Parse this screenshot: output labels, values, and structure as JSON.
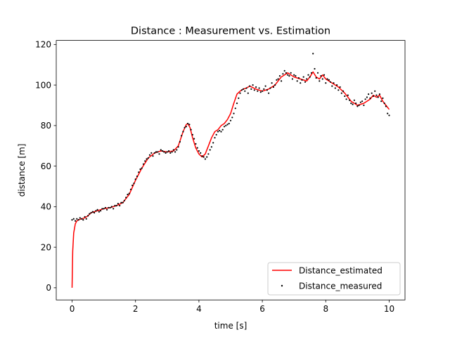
{
  "chart_data": {
    "type": "line",
    "title": "Distance : Measurement vs. Estimation",
    "xlabel": "time [s]",
    "ylabel": "distance [m]",
    "xlim": [
      -0.5,
      10.5
    ],
    "ylim": [
      -6,
      122
    ],
    "xticks": [
      0,
      2,
      4,
      6,
      8,
      10
    ],
    "yticks": [
      0,
      20,
      40,
      60,
      80,
      100,
      120
    ],
    "grid": false,
    "legend_position": "lower-right",
    "series": [
      {
        "name": "Distance_estimated",
        "style": "line",
        "color": "#ff0000",
        "x": [
          0,
          0.02,
          0.05,
          0.1,
          0.15,
          0.2,
          0.3,
          0.4,
          0.5,
          0.6,
          0.8,
          1.0,
          1.2,
          1.4,
          1.6,
          1.8,
          2.0,
          2.2,
          2.4,
          2.6,
          2.8,
          3.0,
          3.2,
          3.35,
          3.5,
          3.6,
          3.65,
          3.72,
          3.8,
          3.9,
          4.0,
          4.1,
          4.2,
          4.3,
          4.4,
          4.5,
          4.6,
          4.7,
          4.8,
          4.9,
          5.0,
          5.1,
          5.2,
          5.3,
          5.4,
          5.5,
          5.6,
          5.8,
          6.0,
          6.2,
          6.4,
          6.6,
          6.8,
          7.0,
          7.2,
          7.4,
          7.5,
          7.6,
          7.7,
          7.8,
          7.9,
          8.0,
          8.2,
          8.4,
          8.6,
          8.8,
          9.0,
          9.2,
          9.4,
          9.5,
          9.6,
          9.7,
          9.8,
          9.9,
          10.0
        ],
        "y": [
          0,
          18,
          27,
          31.5,
          33,
          33.5,
          34,
          34.5,
          35.5,
          37,
          38,
          39,
          39.5,
          40.5,
          42,
          46,
          53,
          59,
          64,
          66.5,
          67.5,
          67,
          67.5,
          70,
          77,
          80.5,
          81,
          79,
          74,
          69,
          66,
          64.5,
          66,
          70,
          74,
          77,
          78,
          80,
          81,
          83,
          86,
          91,
          95.5,
          97,
          98,
          98.5,
          99.5,
          98,
          97,
          98,
          100,
          104,
          106,
          104,
          103,
          102,
          104,
          106.5,
          104,
          103,
          105,
          103,
          101,
          99,
          96,
          92,
          90,
          91,
          93,
          95,
          94,
          95,
          92,
          90,
          88
        ]
      },
      {
        "name": "Distance_measured",
        "style": "scatter",
        "color": "#000000",
        "x": [
          0,
          0.05,
          0.1,
          0.15,
          0.2,
          0.25,
          0.3,
          0.35,
          0.4,
          0.45,
          0.5,
          0.55,
          0.6,
          0.65,
          0.7,
          0.75,
          0.8,
          0.85,
          0.9,
          0.95,
          1.0,
          1.05,
          1.1,
          1.15,
          1.2,
          1.25,
          1.3,
          1.35,
          1.4,
          1.45,
          1.5,
          1.55,
          1.6,
          1.65,
          1.7,
          1.75,
          1.8,
          1.85,
          1.9,
          1.95,
          2.0,
          2.05,
          2.1,
          2.15,
          2.2,
          2.25,
          2.3,
          2.35,
          2.4,
          2.45,
          2.5,
          2.55,
          2.6,
          2.65,
          2.7,
          2.75,
          2.8,
          2.85,
          2.9,
          2.95,
          3.0,
          3.05,
          3.1,
          3.15,
          3.2,
          3.25,
          3.3,
          3.35,
          3.4,
          3.45,
          3.5,
          3.55,
          3.6,
          3.65,
          3.7,
          3.75,
          3.8,
          3.85,
          3.9,
          3.95,
          4.0,
          4.05,
          4.1,
          4.15,
          4.2,
          4.25,
          4.3,
          4.35,
          4.4,
          4.45,
          4.5,
          4.55,
          4.6,
          4.65,
          4.7,
          4.75,
          4.8,
          4.85,
          4.9,
          4.95,
          5.0,
          5.05,
          5.1,
          5.15,
          5.2,
          5.25,
          5.3,
          5.35,
          5.4,
          5.45,
          5.5,
          5.55,
          5.6,
          5.65,
          5.7,
          5.75,
          5.8,
          5.85,
          5.9,
          5.95,
          6.0,
          6.05,
          6.1,
          6.15,
          6.2,
          6.25,
          6.3,
          6.35,
          6.4,
          6.45,
          6.5,
          6.55,
          6.6,
          6.65,
          6.7,
          6.75,
          6.8,
          6.85,
          6.9,
          6.95,
          7.0,
          7.05,
          7.1,
          7.15,
          7.2,
          7.25,
          7.3,
          7.35,
          7.4,
          7.45,
          7.5,
          7.55,
          7.6,
          7.65,
          7.7,
          7.75,
          7.8,
          7.85,
          7.9,
          7.95,
          8.0,
          8.05,
          8.1,
          8.15,
          8.2,
          8.25,
          8.3,
          8.35,
          8.4,
          8.45,
          8.5,
          8.55,
          8.6,
          8.65,
          8.7,
          8.75,
          8.8,
          8.85,
          8.9,
          8.95,
          9.0,
          9.05,
          9.1,
          9.15,
          9.2,
          9.25,
          9.3,
          9.35,
          9.4,
          9.45,
          9.5,
          9.55,
          9.6,
          9.65,
          9.7,
          9.75,
          9.8,
          9.85,
          9.9,
          9.95,
          10.0
        ],
        "y": [
          33.5,
          34,
          33,
          34,
          33.5,
          34.5,
          34,
          33.5,
          35,
          34,
          35.5,
          36.5,
          37,
          37.5,
          37,
          38,
          38.5,
          37.5,
          38,
          39,
          39,
          39.5,
          38.5,
          39.5,
          39.5,
          40,
          39,
          40.5,
          40.5,
          41.5,
          40.5,
          42,
          42,
          43,
          44.5,
          46,
          46.5,
          48.5,
          50.5,
          51.5,
          53.5,
          55,
          57,
          58.5,
          59,
          61,
          62.5,
          63.5,
          64,
          65.5,
          66.5,
          65,
          66.5,
          67,
          67,
          66,
          68,
          67.5,
          67,
          66.5,
          67,
          67.5,
          66.5,
          67,
          68,
          67,
          68,
          69.5,
          72,
          75,
          77,
          79,
          79.5,
          81,
          80.5,
          78,
          75.5,
          73.5,
          71,
          69,
          67.5,
          66.5,
          65,
          64.5,
          63.5,
          64.5,
          66,
          68,
          69.5,
          71.5,
          74,
          75.5,
          77,
          77.5,
          77,
          78,
          79.5,
          80,
          80.5,
          81,
          82.5,
          84,
          86,
          88.5,
          91,
          93.5,
          96,
          97.5,
          98,
          97,
          98.5,
          96,
          99.5,
          98,
          100,
          97.5,
          99,
          97,
          98.5,
          96.5,
          97,
          98,
          99.5,
          97.5,
          96,
          98.5,
          101,
          99,
          100,
          102.5,
          103,
          104.5,
          102,
          105.5,
          107,
          106,
          105,
          104.5,
          106,
          103,
          105,
          104.5,
          102,
          103.5,
          101,
          102.5,
          104,
          101.5,
          103,
          105,
          104,
          106,
          115.5,
          108,
          103.5,
          106,
          102,
          104.5,
          103,
          105,
          101,
          103,
          102.5,
          101.5,
          99.5,
          101,
          98.5,
          100,
          97.5,
          99,
          96,
          97,
          94.5,
          93,
          95,
          92.5,
          91,
          90.5,
          92.5,
          91,
          89.5,
          90,
          91.5,
          92,
          90,
          93,
          94,
          95.5,
          93.5,
          96,
          94.5,
          97,
          95,
          94,
          95.5,
          92,
          93.5,
          91,
          89.5,
          86,
          85
        ]
      }
    ]
  }
}
